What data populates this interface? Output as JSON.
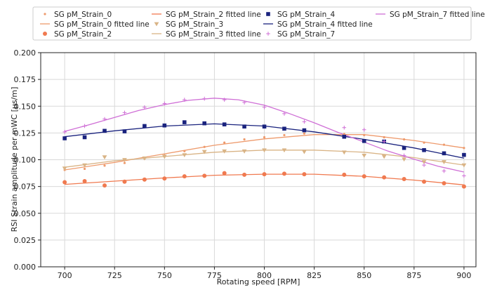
{
  "chart_data": {
    "type": "scatter",
    "xlabel": "Rotating speed [RPM]",
    "ylabel": "RSI Strain amplitude per mWC [μs/m]",
    "xlim": [
      688,
      906
    ],
    "ylim": [
      0,
      0.2
    ],
    "x_ticks": [
      "700",
      "725",
      "750",
      "775",
      "800",
      "825",
      "850",
      "875",
      "900"
    ],
    "y_ticks": [
      "0.000",
      "0.025",
      "0.050",
      "0.075",
      "0.100",
      "0.125",
      "0.150",
      "0.175",
      "0.200"
    ],
    "grid": true,
    "legend_position": "top",
    "series": [
      {
        "name": "SG pM_Strain_0",
        "marker": "dot",
        "color": "#ee9a6c",
        "x": [
          700,
          710,
          720,
          730,
          740,
          750,
          760,
          770,
          780,
          790,
          800,
          810,
          820,
          840,
          850,
          860,
          870,
          880,
          890,
          900
        ],
        "y": [
          0.0905,
          0.0915,
          0.0945,
          0.097,
          0.101,
          0.104,
          0.108,
          0.112,
          0.116,
          0.119,
          0.121,
          0.123,
          0.1245,
          0.124,
          0.123,
          0.121,
          0.119,
          0.116,
          0.114,
          0.111
        ]
      },
      {
        "name": "SG pM_Strain_2",
        "marker": "circle",
        "color": "#f07a50",
        "x": [
          700,
          710,
          720,
          730,
          740,
          750,
          760,
          770,
          780,
          790,
          800,
          810,
          820,
          840,
          850,
          860,
          870,
          880,
          890,
          900
        ],
        "y": [
          0.079,
          0.08,
          0.076,
          0.0795,
          0.0815,
          0.0825,
          0.0845,
          0.085,
          0.0875,
          0.086,
          0.0865,
          0.087,
          0.0865,
          0.086,
          0.0845,
          0.0835,
          0.082,
          0.0795,
          0.078,
          0.075
        ]
      },
      {
        "name": "SG pM_Strain_3",
        "marker": "triangle-down",
        "color": "#d9b486",
        "x": [
          700,
          710,
          720,
          730,
          740,
          750,
          760,
          770,
          780,
          790,
          800,
          810,
          820,
          840,
          850,
          860,
          870,
          880,
          890,
          900
        ],
        "y": [
          0.092,
          0.095,
          0.1025,
          0.1,
          0.1015,
          0.103,
          0.1045,
          0.1075,
          0.108,
          0.108,
          0.109,
          0.109,
          0.1075,
          0.107,
          0.104,
          0.103,
          0.1005,
          0.098,
          0.098,
          0.095
        ]
      },
      {
        "name": "SG pM_Strain_4",
        "marker": "square",
        "color": "#1a237e",
        "x": [
          700,
          710,
          720,
          730,
          740,
          750,
          760,
          770,
          780,
          790,
          800,
          810,
          820,
          840,
          850,
          860,
          870,
          880,
          890,
          900
        ],
        "y": [
          0.12,
          0.121,
          0.127,
          0.1265,
          0.1315,
          0.132,
          0.135,
          0.134,
          0.133,
          0.131,
          0.131,
          0.129,
          0.1275,
          0.1215,
          0.1175,
          0.117,
          0.111,
          0.109,
          0.106,
          0.1045
        ]
      },
      {
        "name": "SG pM_Strain_7",
        "marker": "plus",
        "color": "#cf6fd6",
        "x": [
          700,
          710,
          720,
          730,
          740,
          750,
          760,
          770,
          780,
          790,
          800,
          810,
          820,
          840,
          850,
          860,
          870,
          880,
          890,
          900
        ],
        "y": [
          0.126,
          0.1315,
          0.138,
          0.144,
          0.149,
          0.1525,
          0.156,
          0.157,
          0.156,
          0.1535,
          0.149,
          0.143,
          0.1355,
          0.13,
          0.128,
          0.117,
          0.104,
          0.095,
          0.0895,
          0.085
        ]
      },
      {
        "name": "SG pM_Strain_0 fitted line",
        "line": true,
        "color": "#ee9a6c",
        "x": [
          700,
          725,
          750,
          775,
          800,
          825,
          850,
          875,
          900
        ],
        "y": [
          0.0905,
          0.0975,
          0.1055,
          0.1135,
          0.1195,
          0.1235,
          0.1235,
          0.118,
          0.111
        ]
      },
      {
        "name": "SG pM_Strain_2 fitted line",
        "line": true,
        "color": "#f07a50",
        "x": [
          700,
          725,
          750,
          775,
          800,
          825,
          850,
          875,
          900
        ],
        "y": [
          0.077,
          0.08,
          0.083,
          0.0855,
          0.0865,
          0.0865,
          0.0845,
          0.081,
          0.0765
        ]
      },
      {
        "name": "SG pM_Strain_3 fitted line",
        "line": true,
        "color": "#d9b486",
        "x": [
          700,
          725,
          750,
          775,
          800,
          825,
          850,
          875,
          900
        ],
        "y": [
          0.093,
          0.099,
          0.103,
          0.107,
          0.109,
          0.109,
          0.107,
          0.102,
          0.095
        ]
      },
      {
        "name": "SG pM_Strain_4 fitted line",
        "line": true,
        "color": "#1a237e",
        "x": [
          700,
          725,
          750,
          775,
          800,
          825,
          850,
          875,
          900
        ],
        "y": [
          0.1215,
          0.127,
          0.1315,
          0.1335,
          0.1315,
          0.126,
          0.119,
          0.111,
          0.1015
        ]
      },
      {
        "name": "SG pM_Strain_7 fitted line",
        "line": true,
        "color": "#cf6fd6",
        "x": [
          700,
          712,
          725,
          737,
          750,
          762,
          775,
          787,
          800,
          812,
          825,
          837,
          850,
          862,
          875,
          887,
          900
        ],
        "y": [
          0.1265,
          0.1325,
          0.1395,
          0.146,
          0.1515,
          0.1555,
          0.1575,
          0.156,
          0.151,
          0.1435,
          0.1345,
          0.1255,
          0.1165,
          0.108,
          0.1005,
          0.094,
          0.0885
        ]
      }
    ]
  }
}
